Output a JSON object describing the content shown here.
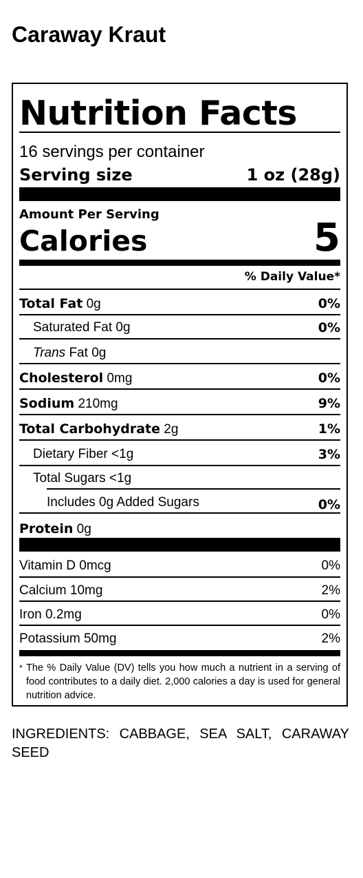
{
  "product_name": "Caraway Kraut",
  "label": {
    "heading": "Nutrition Facts",
    "servings_per_container": "16 servings per container",
    "serving_size_label": "Serving size",
    "serving_size_value": "1 oz (28g)",
    "amount_per_serving": "Amount Per Serving",
    "calories_label": "Calories",
    "calories_value": "5",
    "daily_value_header": "% Daily Value*",
    "nutrients": [
      {
        "name": "Total Fat",
        "amount": "0g",
        "dv": "0%"
      },
      {
        "name": "Saturated Fat",
        "amount": "0g",
        "dv": "0%"
      },
      {
        "name_italic": "Trans",
        "name": "Fat",
        "amount": "0g",
        "dv": ""
      },
      {
        "name": "Cholesterol",
        "amount": "0mg",
        "dv": "0%"
      },
      {
        "name": "Sodium",
        "amount": "210mg",
        "dv": "9%"
      },
      {
        "name": "Total Carbohydrate",
        "amount": "2g",
        "dv": "1%"
      },
      {
        "name": "Dietary Fiber",
        "amount": "<1g",
        "dv": "3%"
      },
      {
        "name": "Total Sugars",
        "amount": "<1g",
        "dv": ""
      },
      {
        "name": "Includes 0g Added Sugars",
        "amount": "",
        "dv": "0%"
      },
      {
        "name": "Protein",
        "amount": "0g",
        "dv": ""
      }
    ],
    "vitamins": [
      {
        "text": "Vitamin D 0mcg",
        "dv": "0%"
      },
      {
        "text": "Calcium 10mg",
        "dv": "2%"
      },
      {
        "text": "Iron 0.2mg",
        "dv": "0%"
      },
      {
        "text": "Potassium 50mg",
        "dv": "2%"
      }
    ],
    "footnote_star": "*",
    "footnote": "The % Daily Value (DV) tells you how much a nutrient in a serving of food contributes to a daily diet. 2,000 calories a day is used for general nutrition advice."
  },
  "ingredients": "INGREDIENTS: CABBAGE, SEA SALT, CARAWAY SEED"
}
